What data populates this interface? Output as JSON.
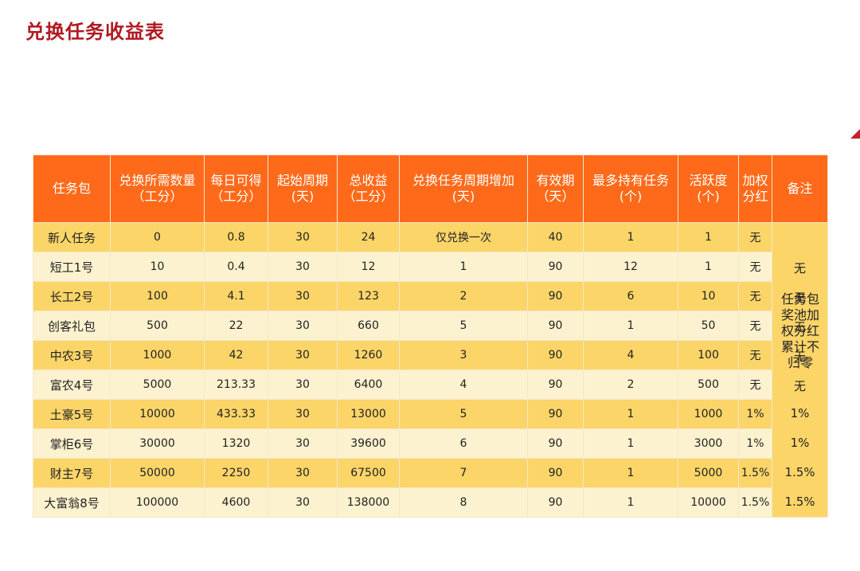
{
  "title": "兑换任务收益表",
  "table": {
    "headers": [
      "任务包",
      "兑换所需数量（工分）",
      "每日可得（工分）",
      "起始周期(天)",
      "总收益（工分）",
      "兑换任务周期增加(天)",
      "有效期（天）",
      "最多持有任务(个)",
      "活跃度(个)",
      "加权分红",
      "备注"
    ],
    "rows": [
      [
        "新人任务",
        "0",
        "0.8",
        "30",
        "24",
        "仅兑换一次",
        "40",
        "1",
        "1",
        "无"
      ],
      [
        "短工1号",
        "10",
        "0.4",
        "30",
        "12",
        "1",
        "90",
        "12",
        "1",
        "无"
      ],
      [
        "长工2号",
        "100",
        "4.1",
        "30",
        "123",
        "2",
        "90",
        "6",
        "10",
        "无"
      ],
      [
        "创客礼包",
        "500",
        "22",
        "30",
        "660",
        "5",
        "90",
        "1",
        "50",
        "无"
      ],
      [
        "中农3号",
        "1000",
        "42",
        "30",
        "1260",
        "3",
        "90",
        "4",
        "100",
        "无"
      ],
      [
        "富农4号",
        "5000",
        "213.33",
        "30",
        "6400",
        "4",
        "90",
        "2",
        "500",
        "无"
      ],
      [
        "土豪5号",
        "10000",
        "433.33",
        "30",
        "13000",
        "5",
        "90",
        "1",
        "1000",
        "1%"
      ],
      [
        "掌柜6号",
        "30000",
        "1320",
        "30",
        "39600",
        "6",
        "90",
        "1",
        "3000",
        "1%"
      ],
      [
        "财主7号",
        "50000",
        "2250",
        "30",
        "67500",
        "7",
        "90",
        "1",
        "5000",
        "1.5%"
      ],
      [
        "大富翁8号",
        "100000",
        "4600",
        "30",
        "138000",
        "8",
        "90",
        "1",
        "10000",
        "1.5%"
      ]
    ],
    "notes_column": [
      "无",
      "无",
      "无",
      "无",
      "无",
      "无",
      "1%",
      "1%",
      "1.5%",
      "1.5%"
    ],
    "notes_overlay": "任务包奖池加权分红累计不归零"
  }
}
